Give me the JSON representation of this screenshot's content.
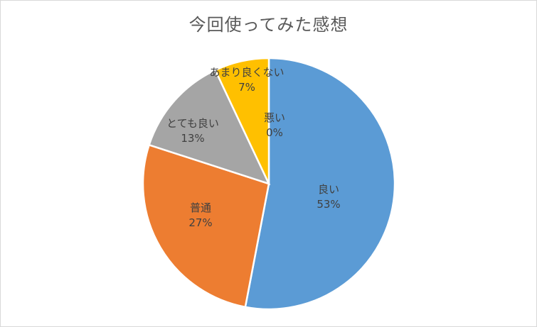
{
  "chart_data": {
    "type": "pie",
    "title": "今回使ってみた感想",
    "slices": [
      {
        "label": "良い",
        "value": 53,
        "pct_label": "53%",
        "color": "#5B9BD5"
      },
      {
        "label": "普通",
        "value": 27,
        "pct_label": "27%",
        "color": "#ED7D31"
      },
      {
        "label": "とても良い",
        "value": 13,
        "pct_label": "13%",
        "color": "#A5A5A5"
      },
      {
        "label": "あまり良くない",
        "value": 7,
        "pct_label": "7%",
        "color": "#FFC000"
      },
      {
        "label": "悪い",
        "value": 0,
        "pct_label": "0%",
        "color": "#4472C4"
      }
    ],
    "legend": "none"
  }
}
